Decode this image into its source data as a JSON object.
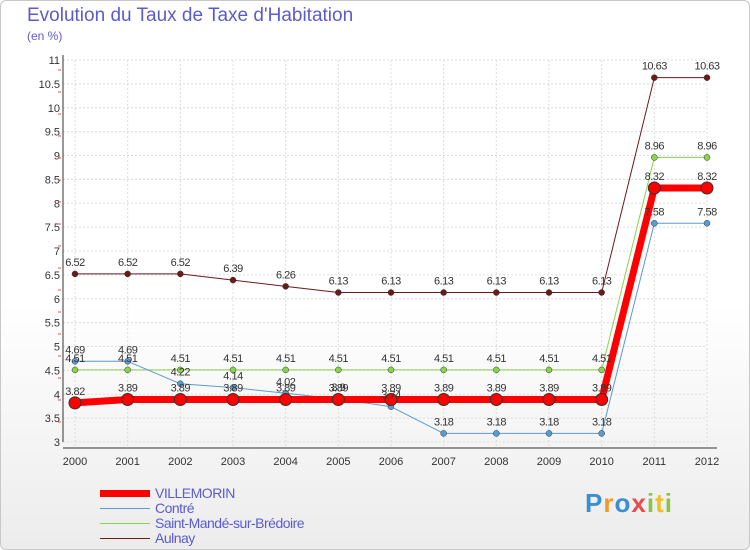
{
  "title": "Evolution du Taux de Taxe d'Habitation",
  "subtitle": "(en %)",
  "logo": {
    "text": "Proxiti"
  },
  "chart_data": {
    "type": "line",
    "title": "Evolution du Taux de Taxe d'Habitation",
    "ylabel": "(en %)",
    "xlabel": "",
    "x": [
      "2000",
      "2001",
      "2002",
      "2003",
      "2004",
      "2005",
      "2006",
      "2007",
      "2008",
      "2009",
      "2010",
      "2011",
      "2012"
    ],
    "ylim": [
      3,
      11
    ],
    "yticks": [
      "3",
      "3.5",
      "4",
      "4.5",
      "5",
      "5.5",
      "6",
      "6.5",
      "7",
      "7.5",
      "8",
      "8.5",
      "9",
      "9.5",
      "10",
      "10.5",
      "11"
    ],
    "grid": true,
    "legend_position": "bottom-left",
    "series": [
      {
        "name": "Aulnay",
        "color": "#6b1a1a",
        "width": 1,
        "values": [
          6.52,
          6.52,
          6.52,
          6.39,
          6.26,
          6.13,
          6.13,
          6.13,
          6.13,
          6.13,
          6.13,
          10.63,
          10.63
        ],
        "labels": [
          "6.52",
          "6.52",
          "6.52",
          "6.39",
          "6.26",
          "6.13",
          "6.13",
          "6.13",
          "6.13",
          "6.13",
          "6.13",
          "10.63",
          "10.63"
        ]
      },
      {
        "name": "Saint-Mandé-sur-Brédoire",
        "color": "#88d44a",
        "width": 1,
        "values": [
          4.51,
          4.51,
          4.51,
          4.51,
          4.51,
          4.51,
          4.51,
          4.51,
          4.51,
          4.51,
          4.51,
          8.96,
          8.96
        ],
        "labels": [
          "4.51",
          "4.51",
          "4.51",
          "4.51",
          "4.51",
          "4.51",
          "4.51",
          "4.51",
          "4.51",
          "4.51",
          "4.51",
          "8.96",
          "8.96"
        ]
      },
      {
        "name": "Contré",
        "color": "#5a9bd0",
        "width": 1,
        "values": [
          4.69,
          4.69,
          4.22,
          4.14,
          4.02,
          3.9,
          3.74,
          3.18,
          3.18,
          3.18,
          3.18,
          7.58,
          7.58
        ],
        "labels": [
          "4.69",
          "4.69",
          "4.22",
          "4.14",
          "4.02",
          "3.9",
          "3.74",
          "3.18",
          "3.18",
          "3.18",
          "3.18",
          "7.58",
          "7.58"
        ]
      },
      {
        "name": "VILLEMORIN",
        "color": "#ff0000",
        "width": 7,
        "values": [
          3.82,
          3.89,
          3.89,
          3.89,
          3.89,
          3.89,
          3.89,
          3.89,
          3.89,
          3.89,
          3.89,
          8.32,
          8.32
        ],
        "labels": [
          "3.82",
          "3.89",
          "3.89",
          "3.89",
          "3.89",
          "3.89",
          "3.89",
          "3.89",
          "3.89",
          "3.89",
          "3.89",
          "8.32",
          "8.32"
        ]
      }
    ]
  },
  "legend": [
    {
      "label": "VILLEMORIN",
      "color": "#ff0000",
      "thick": true
    },
    {
      "label": "Contré",
      "color": "#5a9bd0",
      "thick": false
    },
    {
      "label": "Saint-Mandé-sur-Brédoire",
      "color": "#88d44a",
      "thick": false
    },
    {
      "label": "Aulnay",
      "color": "#6b1a1a",
      "thick": false
    }
  ]
}
